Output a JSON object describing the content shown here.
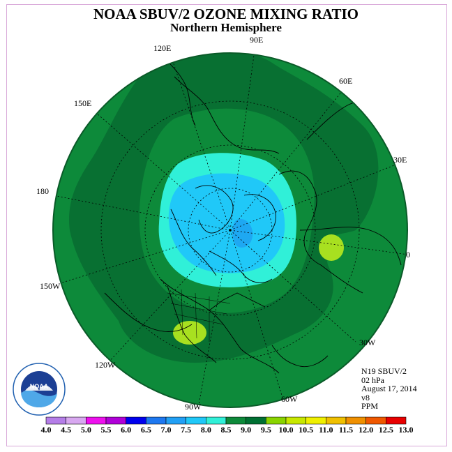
{
  "title": "NOAA SBUV/2 OZONE MIXING RATIO",
  "subtitle": "Northern Hemisphere",
  "longitude_labels": [
    "90E",
    "60E",
    "30E",
    "0",
    "30W",
    "60W",
    "90W",
    "120W",
    "150W",
    "180",
    "150E",
    "120E"
  ],
  "info": {
    "instrument": "N19 SBUV/2",
    "pressure": "02 hPa",
    "date": "August 17, 2014",
    "version": "v8",
    "units": "PPM"
  },
  "colorbar": {
    "ticks": [
      "4.0",
      "4.5",
      "5.0",
      "5.5",
      "6.0",
      "6.5",
      "7.0",
      "7.5",
      "8.0",
      "8.5",
      "9.0",
      "9.5",
      "10.0",
      "10.5",
      "11.0",
      "11.5",
      "12.0",
      "12.5",
      "13.0"
    ],
    "colors": [
      "#b57ee8",
      "#d8a8f0",
      "#ee10ee",
      "#b000d8",
      "#0000ee",
      "#1e78f0",
      "#22a0f5",
      "#20c8f8",
      "#30f0d8",
      "#0d8a3a",
      "#007032",
      "#8ad400",
      "#c8e800",
      "#f0f000",
      "#f0c000",
      "#f09000",
      "#f05800",
      "#e80000",
      "#8b5a3c"
    ]
  },
  "legend_map_colors": {
    "ocean_base": "#0d8a3a",
    "dark_band": "#087030",
    "cyan_zone": "#30f0d8",
    "blue_core": "#20c8f8",
    "inner_core": "#1e9ff0",
    "yellow_green_spots": "#a8e020"
  },
  "logo_text": "NOAA"
}
